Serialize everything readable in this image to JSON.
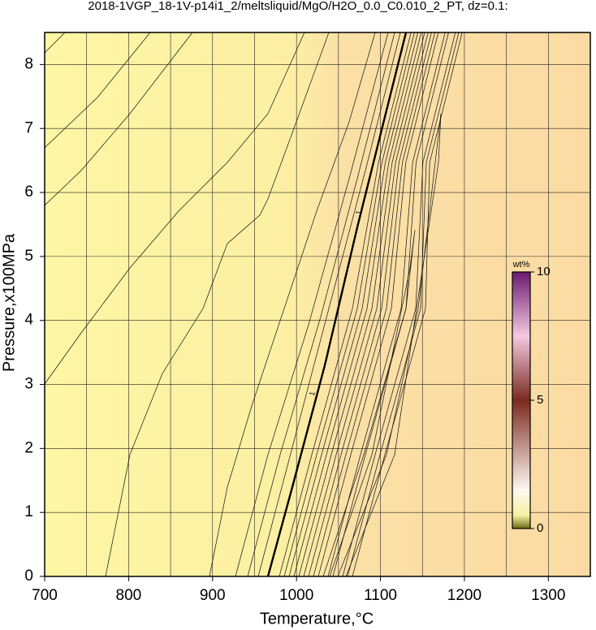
{
  "chart_data": {
    "type": "contour",
    "title": "2018-1VGP_18-1V-p14i1_2/meltsliquid/MgO/H2O_0.0_C0.010_2_PT, dz=0.1:",
    "xlabel": "Temperature,°C",
    "ylabel": "Pressure,x100MPa",
    "xlim": [
      700,
      1350
    ],
    "ylim": [
      0,
      8.5
    ],
    "xticks": [
      700,
      800,
      900,
      1000,
      1100,
      1200,
      1300
    ],
    "yticks": [
      0,
      1,
      2,
      3,
      4,
      5,
      6,
      7,
      8
    ],
    "xgrid": [
      750,
      800,
      850,
      900,
      950,
      1000,
      1050,
      1100,
      1150,
      1200,
      1250,
      1300
    ],
    "ygrid": [
      1,
      2,
      3,
      4,
      5,
      6,
      7,
      8
    ],
    "contour_labels": [
      "1",
      "1"
    ],
    "colorbar": {
      "label": "wt%",
      "lim": [
        0,
        10
      ],
      "ticks": [
        0,
        5,
        10
      ]
    }
  }
}
